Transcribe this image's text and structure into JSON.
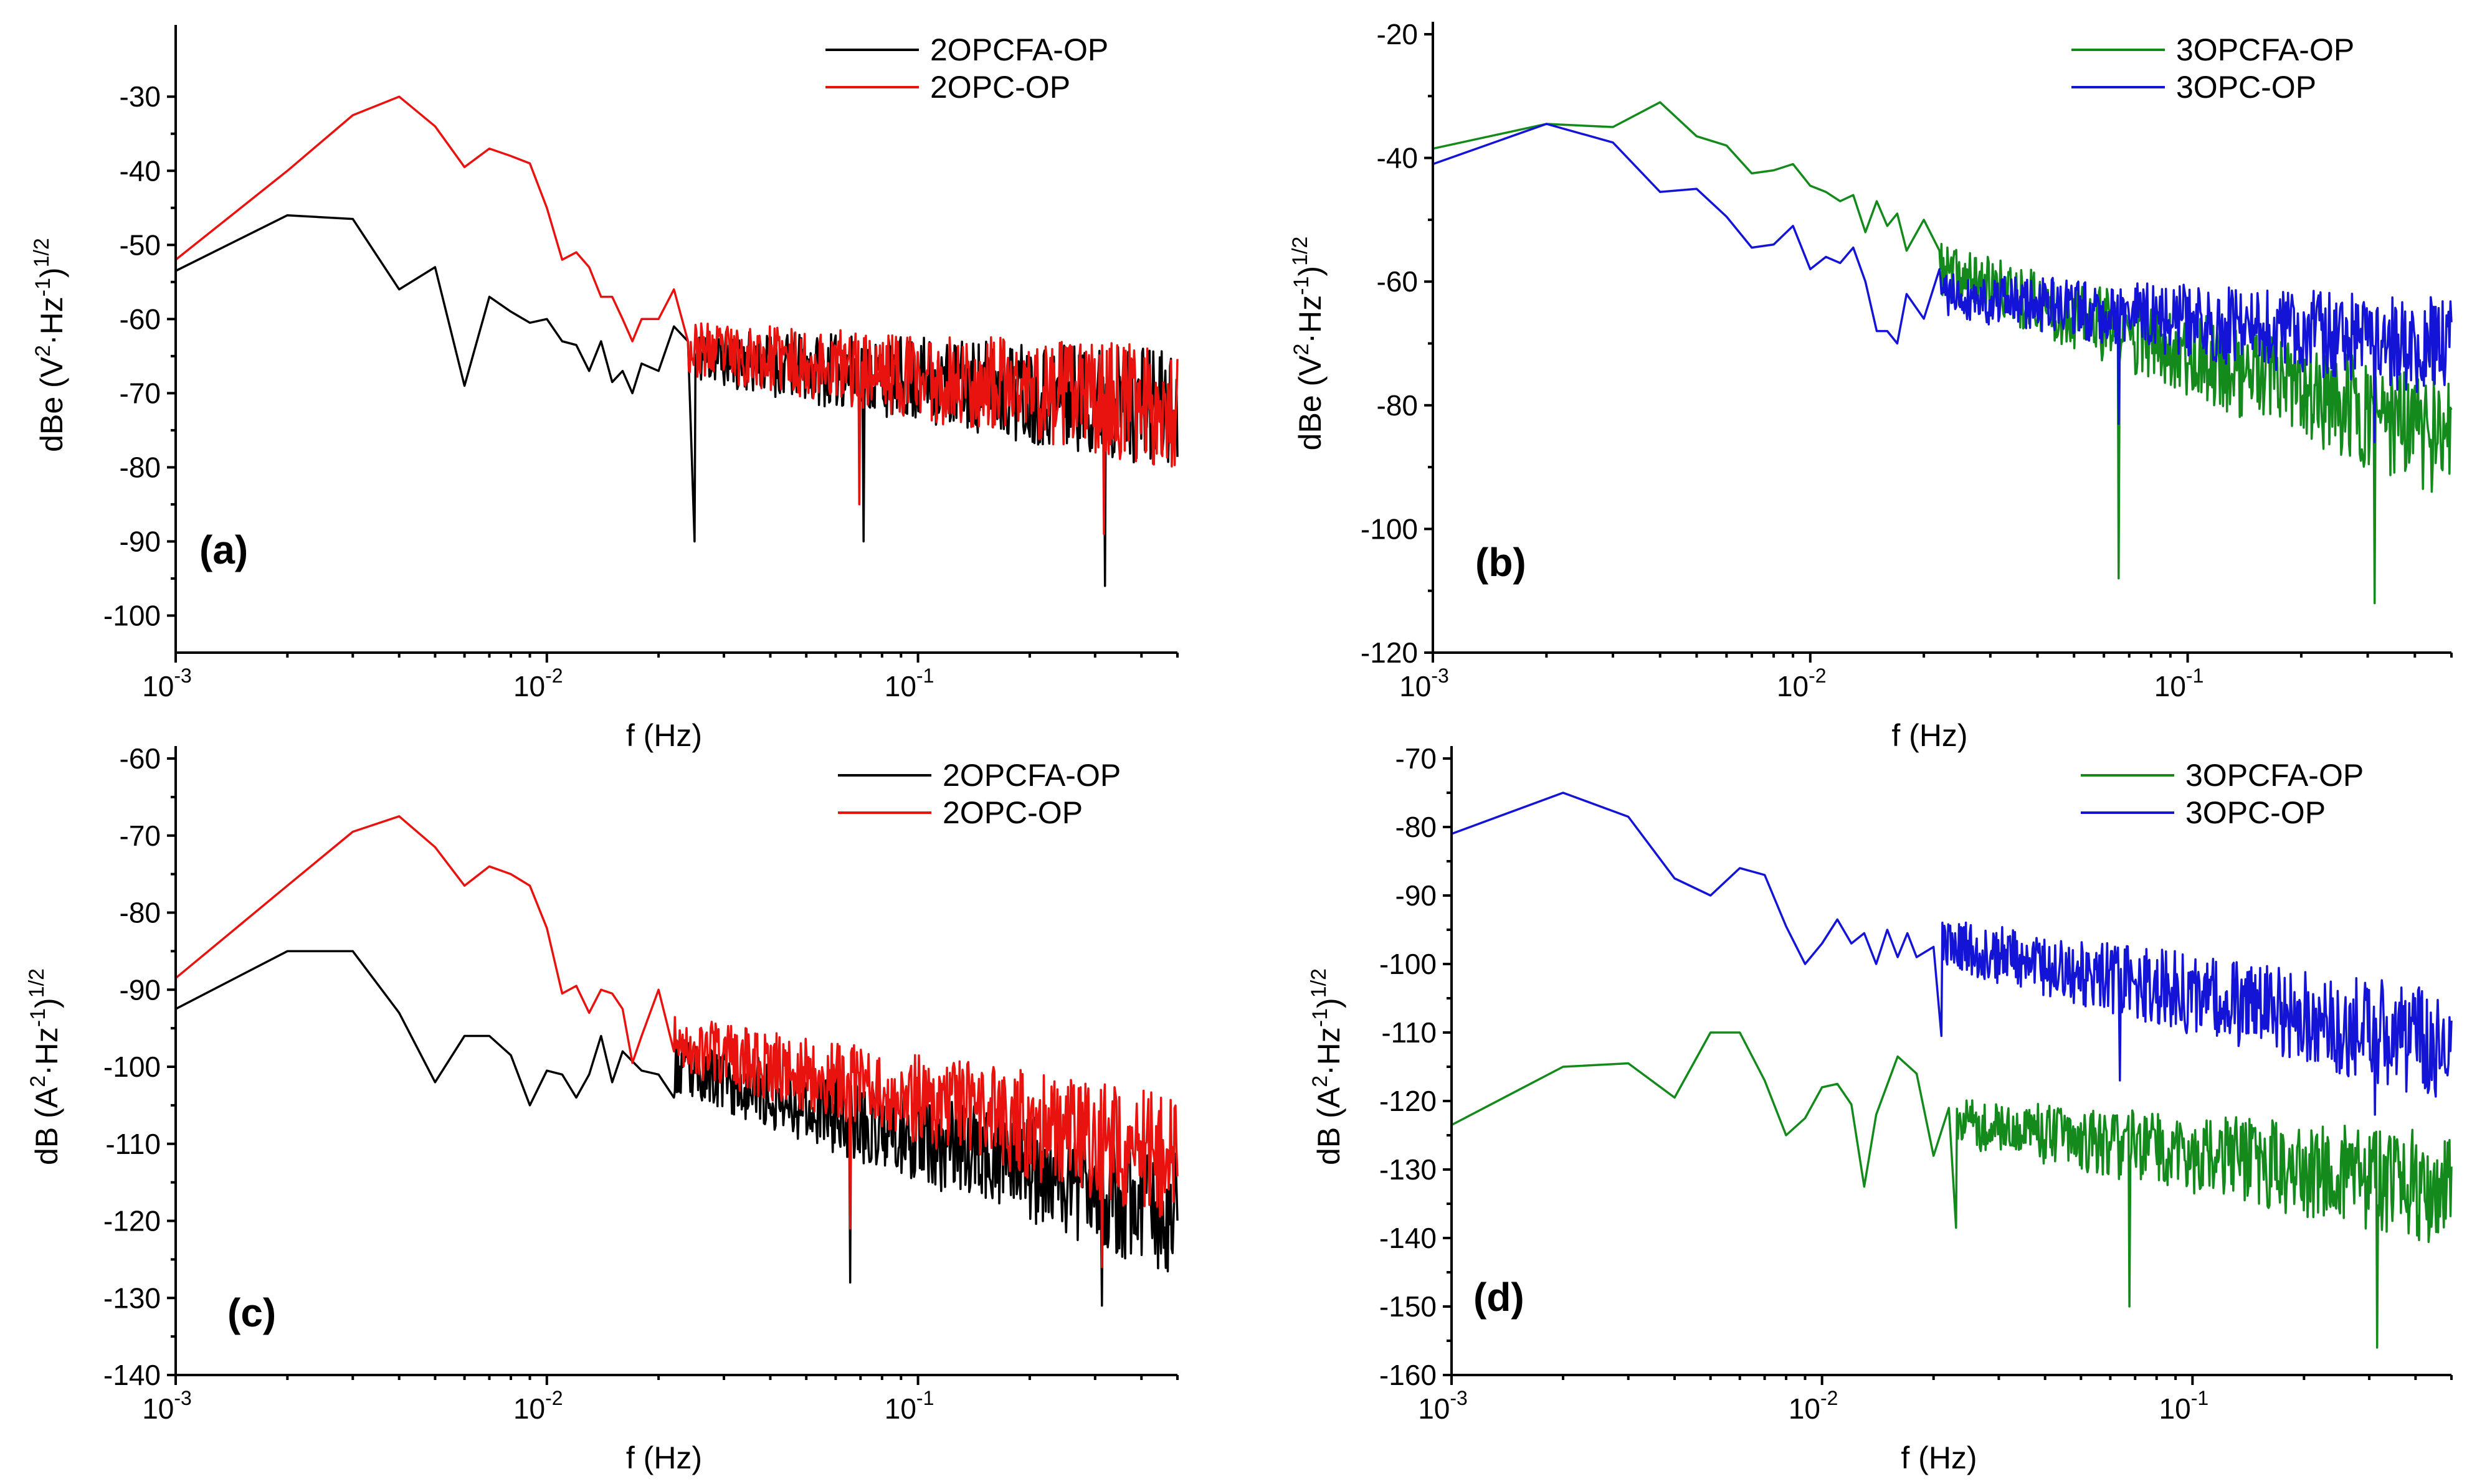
{
  "chart_data": [
    {
      "panel": "(a)",
      "type": "line",
      "xscale": "log",
      "xlim": [
        0.001,
        0.5
      ],
      "ylim": [
        -105,
        -22
      ],
      "yticks": [
        -100,
        -90,
        -80,
        -70,
        -60,
        -50,
        -40,
        -30
      ],
      "xticks": [
        {
          "value": 0.001,
          "base": "10",
          "exp": "-3"
        },
        {
          "value": 0.01,
          "base": "10",
          "exp": "-2"
        },
        {
          "value": 0.1,
          "base": "10",
          "exp": "-1"
        }
      ],
      "xlabel": "f (Hz)",
      "ylabel": {
        "prefix": "dBe (V",
        "sup1": "2",
        "mid": "·Hz",
        "sup2": "-1",
        "suffix": ")",
        "sup3": "1/2"
      },
      "series": [
        {
          "name": "2OPCFA-OP",
          "color": "#000000",
          "x": [
            0.001,
            0.002,
            0.003,
            0.004,
            0.005,
            0.006,
            0.007,
            0.008,
            0.009,
            0.01,
            0.011,
            0.012,
            0.013,
            0.014,
            0.015,
            0.016,
            0.017,
            0.018,
            0.02,
            0.022,
            0.024,
            0.025
          ],
          "y": [
            -53.5,
            -46,
            -46.5,
            -56,
            -53,
            -69,
            -57,
            -59,
            -60.5,
            -60,
            -63,
            -63.5,
            -67,
            -63,
            -68.5,
            -67,
            -70,
            -66,
            -67,
            -61,
            -63,
            -90
          ],
          "noise": {
            "from": 0.025,
            "to": 0.5,
            "start_mean": -65,
            "end_mean": -72,
            "amp": 6,
            "spikes": [
              -90,
              -96
            ],
            "seed": 11
          }
        },
        {
          "name": "2OPC-OP",
          "color": "#e8130f",
          "x": [
            0.001,
            0.002,
            0.003,
            0.004,
            0.005,
            0.006,
            0.007,
            0.008,
            0.009,
            0.01,
            0.011,
            0.012,
            0.013,
            0.014,
            0.015,
            0.016,
            0.017,
            0.018,
            0.02,
            0.022,
            0.024
          ],
          "y": [
            -52,
            -40,
            -32.5,
            -30,
            -34,
            -39.5,
            -37,
            -38,
            -39,
            -45,
            -52,
            -51,
            -53,
            -57,
            -57,
            -60,
            -63,
            -60,
            -60,
            -56,
            -63
          ],
          "noise": {
            "from": 0.024,
            "to": 0.5,
            "start_mean": -64,
            "end_mean": -72,
            "amp": 6,
            "spikes": [
              -85,
              -89
            ],
            "seed": 23
          }
        }
      ]
    },
    {
      "panel": "(b)",
      "type": "line",
      "xscale": "log",
      "xlim": [
        0.001,
        0.5
      ],
      "ylim": [
        -120,
        -20
      ],
      "yticks": [
        -120,
        -100,
        -80,
        -60,
        -40,
        -20
      ],
      "xticks": [
        {
          "value": 0.001,
          "base": "10",
          "exp": "-3"
        },
        {
          "value": 0.01,
          "base": "10",
          "exp": "-2"
        },
        {
          "value": 0.1,
          "base": "10",
          "exp": "-1"
        }
      ],
      "xlabel": "f (Hz)",
      "ylabel": {
        "prefix": "dBe (V",
        "sup1": "2",
        "mid": "·Hz",
        "sup2": "-1",
        "suffix": ")",
        "sup3": "1/2"
      },
      "series": [
        {
          "name": "3OPCFA-OP",
          "color": "#138a1b",
          "x": [
            0.001,
            0.002,
            0.003,
            0.004,
            0.005,
            0.006,
            0.007,
            0.008,
            0.009,
            0.01,
            0.011,
            0.012,
            0.013,
            0.014,
            0.015,
            0.016,
            0.017,
            0.018,
            0.02,
            0.022
          ],
          "y": [
            -38.5,
            -34.5,
            -35,
            -31,
            -36.5,
            -38,
            -42.5,
            -42,
            -41,
            -44.5,
            -45.5,
            -47,
            -46,
            -52,
            -47,
            -51,
            -49,
            -55,
            -50,
            -55
          ],
          "noise": {
            "from": 0.022,
            "to": 0.5,
            "start_mean": -58,
            "end_mean": -86,
            "amp": 7,
            "spikes": [
              -108,
              -112
            ],
            "seed": 37
          }
        },
        {
          "name": "3OPC-OP",
          "color": "#1414d6",
          "x": [
            0.001,
            0.002,
            0.003,
            0.004,
            0.005,
            0.006,
            0.007,
            0.008,
            0.009,
            0.01,
            0.011,
            0.012,
            0.013,
            0.014,
            0.015,
            0.016,
            0.017,
            0.018,
            0.02,
            0.022
          ],
          "y": [
            -41,
            -34.5,
            -37.5,
            -45.5,
            -45,
            -49.5,
            -54.5,
            -54,
            -51,
            -58,
            -56,
            -57,
            -54.5,
            -60,
            -68,
            -68,
            -70,
            -62,
            -66,
            -58
          ],
          "noise": {
            "from": 0.022,
            "to": 0.5,
            "start_mean": -62,
            "end_mean": -71,
            "amp": 6,
            "spikes": [
              -83,
              -86
            ],
            "seed": 41
          }
        }
      ]
    },
    {
      "panel": "(c)",
      "type": "line",
      "xscale": "log",
      "xlim": [
        0.001,
        0.5
      ],
      "ylim": [
        -140,
        -60
      ],
      "yticks": [
        -140,
        -130,
        -120,
        -110,
        -100,
        -90,
        -80,
        -70,
        -60
      ],
      "xticks": [
        {
          "value": 0.001,
          "base": "10",
          "exp": "-3"
        },
        {
          "value": 0.01,
          "base": "10",
          "exp": "-2"
        },
        {
          "value": 0.1,
          "base": "10",
          "exp": "-1"
        }
      ],
      "xlabel": "f (Hz)",
      "ylabel": {
        "prefix": "dB (A",
        "sup1": "2",
        "mid": "·Hz",
        "sup2": "-1",
        "suffix": ")",
        "sup3": "1/2"
      },
      "series": [
        {
          "name": "2OPCFA-OP",
          "color": "#000000",
          "x": [
            0.001,
            0.002,
            0.003,
            0.004,
            0.005,
            0.006,
            0.007,
            0.008,
            0.009,
            0.01,
            0.011,
            0.012,
            0.013,
            0.014,
            0.015,
            0.016,
            0.018,
            0.02,
            0.022
          ],
          "y": [
            -92.5,
            -85,
            -85,
            -93,
            -102,
            -96,
            -96,
            -98.5,
            -105,
            -100.5,
            -101,
            -104,
            -101,
            -96,
            -102,
            -98,
            -100.5,
            -101,
            -104
          ],
          "noise": {
            "from": 0.022,
            "to": 0.5,
            "start_mean": -100,
            "end_mean": -119,
            "amp": 6,
            "spikes": [
              -128,
              -131
            ],
            "seed": 53
          }
        },
        {
          "name": "2OPC-OP",
          "color": "#e8130f",
          "x": [
            0.001,
            0.002,
            0.003,
            0.004,
            0.005,
            0.006,
            0.007,
            0.008,
            0.009,
            0.01,
            0.011,
            0.012,
            0.013,
            0.014,
            0.015,
            0.016,
            0.017,
            0.018,
            0.02,
            0.022
          ],
          "y": [
            -88.5,
            -76.5,
            -69.5,
            -67.5,
            -71.5,
            -76.5,
            -74,
            -75,
            -76.5,
            -82,
            -90.5,
            -89.5,
            -93,
            -90,
            -90.5,
            -92.5,
            -99.5,
            -96,
            -90,
            -98
          ],
          "noise": {
            "from": 0.022,
            "to": 0.5,
            "start_mean": -97,
            "end_mean": -112,
            "amp": 6,
            "spikes": [
              -121,
              -126
            ],
            "seed": 67
          }
        }
      ]
    },
    {
      "panel": "(d)",
      "type": "line",
      "xscale": "log",
      "xlim": [
        0.001,
        0.5
      ],
      "ylim": [
        -160,
        -70
      ],
      "yticks": [
        -160,
        -150,
        -140,
        -130,
        -120,
        -110,
        -100,
        -90,
        -80,
        -70
      ],
      "xticks": [
        {
          "value": 0.001,
          "base": "10",
          "exp": "-3"
        },
        {
          "value": 0.01,
          "base": "10",
          "exp": "-2"
        },
        {
          "value": 0.1,
          "base": "10",
          "exp": "-1"
        }
      ],
      "xlabel": "f (Hz)",
      "ylabel": {
        "prefix": "dB (A",
        "sup1": "2",
        "mid": "·Hz",
        "sup2": "-1",
        "suffix": ")",
        "sup3": "1/2"
      },
      "series": [
        {
          "name": "3OPCFA-OP",
          "color": "#138a1b",
          "x": [
            0.001,
            0.002,
            0.003,
            0.004,
            0.005,
            0.006,
            0.007,
            0.008,
            0.009,
            0.01,
            0.011,
            0.012,
            0.013,
            0.014,
            0.016,
            0.018,
            0.02,
            0.022,
            0.023
          ],
          "y": [
            -123.5,
            -115,
            -114.5,
            -119.5,
            -110,
            -110,
            -117,
            -125,
            -122.5,
            -118,
            -117.5,
            -120.5,
            -132.5,
            -122,
            -113.5,
            -116,
            -128,
            -121,
            -138.5
          ],
          "noise": {
            "from": 0.023,
            "to": 0.5,
            "start_mean": -123,
            "end_mean": -133,
            "amp": 6,
            "spikes": [
              -150,
              -156
            ],
            "seed": 71
          }
        },
        {
          "name": "3OPC-OP",
          "color": "#1414d6",
          "x": [
            0.001,
            0.002,
            0.003,
            0.004,
            0.005,
            0.006,
            0.007,
            0.008,
            0.009,
            0.01,
            0.011,
            0.012,
            0.013,
            0.014,
            0.015,
            0.016,
            0.017,
            0.018,
            0.02,
            0.021
          ],
          "y": [
            -81,
            -75,
            -78.5,
            -87.5,
            -90,
            -86,
            -87,
            -94.5,
            -100,
            -97,
            -93.5,
            -97,
            -95.5,
            -100,
            -95,
            -99,
            -95.5,
            -99,
            -97.5,
            -110.5
          ],
          "noise": {
            "from": 0.021,
            "to": 0.5,
            "start_mean": -97,
            "end_mean": -112,
            "amp": 6,
            "spikes": [
              -117,
              -122
            ],
            "seed": 89
          }
        }
      ]
    }
  ]
}
